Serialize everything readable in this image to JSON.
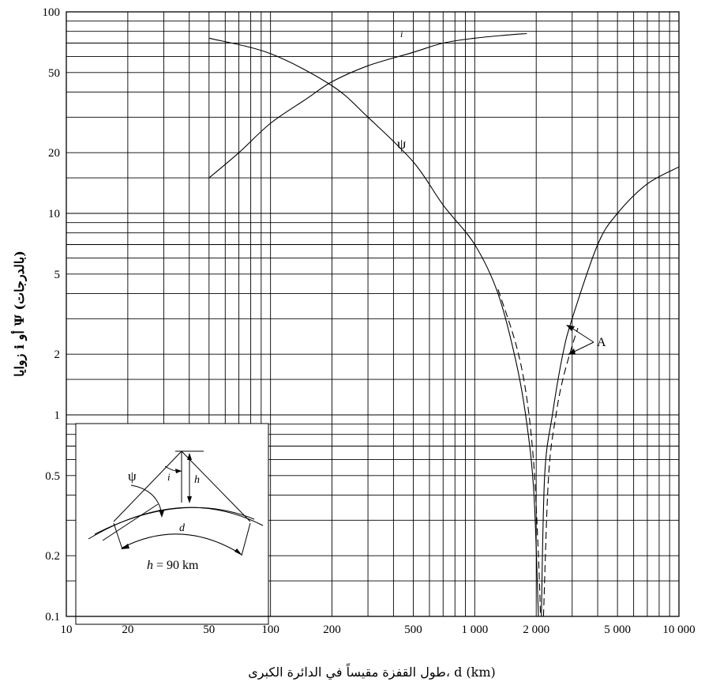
{
  "chart_data": {
    "type": "line",
    "xscale": "log",
    "yscale": "log",
    "xlim": [
      10,
      10000
    ],
    "ylim": [
      0.1,
      100
    ],
    "grid": true,
    "x_tick_labels": [
      {
        "v": 10,
        "label": "10"
      },
      {
        "v": 20,
        "label": "20"
      },
      {
        "v": 50,
        "label": "50"
      },
      {
        "v": 100,
        "label": "100"
      },
      {
        "v": 200,
        "label": "200"
      },
      {
        "v": 500,
        "label": "500"
      },
      {
        "v": 1000,
        "label": "1 000"
      },
      {
        "v": 2000,
        "label": "2 000"
      },
      {
        "v": 5000,
        "label": "5 000"
      },
      {
        "v": 10000,
        "label": "10 000"
      }
    ],
    "y_tick_labels": [
      {
        "v": 0.1,
        "label": "0.1"
      },
      {
        "v": 0.2,
        "label": "0.2"
      },
      {
        "v": 0.5,
        "label": "0.5"
      },
      {
        "v": 1,
        "label": "1"
      },
      {
        "v": 2,
        "label": "2"
      },
      {
        "v": 5,
        "label": "5"
      },
      {
        "v": 10,
        "label": "10"
      },
      {
        "v": 20,
        "label": "20"
      },
      {
        "v": 50,
        "label": "50"
      },
      {
        "v": 100,
        "label": "100"
      }
    ],
    "x_gridlines": [
      20,
      30,
      40,
      50,
      60,
      70,
      80,
      90,
      100,
      200,
      300,
      400,
      500,
      600,
      700,
      800,
      900,
      1000,
      2000,
      3000,
      4000,
      5000,
      6000,
      7000,
      8000,
      9000
    ],
    "y_gridlines": [
      0.15,
      0.2,
      0.3,
      0.4,
      0.5,
      0.6,
      0.7,
      0.8,
      0.9,
      1,
      1.5,
      2,
      3,
      4,
      5,
      6,
      7,
      8,
      9,
      10,
      15,
      20,
      30,
      40,
      50,
      60,
      70,
      80,
      90
    ],
    "xlabel": "طول القفزة مقيساً في الدائرة الكبرى، d (km)",
    "ylabel": "زوايا i أو Ψ (بالدرجات)",
    "series": [
      {
        "name": "i",
        "style": "solid",
        "points": [
          [
            50,
            15
          ],
          [
            70,
            20
          ],
          [
            100,
            28
          ],
          [
            150,
            37
          ],
          [
            200,
            45
          ],
          [
            300,
            54
          ],
          [
            500,
            63
          ],
          [
            700,
            70
          ],
          [
            1000,
            74
          ],
          [
            1500,
            77
          ],
          [
            1800,
            78
          ]
        ]
      },
      {
        "name": "ψ",
        "style": "solid",
        "points": [
          [
            50,
            74
          ],
          [
            100,
            62
          ],
          [
            200,
            43
          ],
          [
            300,
            30
          ],
          [
            500,
            18
          ],
          [
            700,
            11
          ],
          [
            1000,
            7
          ],
          [
            1300,
            4
          ],
          [
            1600,
            1.8
          ],
          [
            1800,
            0.9
          ],
          [
            1950,
            0.4
          ],
          [
            2050,
            0.1
          ]
        ]
      },
      {
        "name": "",
        "style": "solid",
        "points": [
          [
            2120,
            0.1
          ],
          [
            2200,
            0.5
          ],
          [
            2400,
            1
          ],
          [
            2700,
            2
          ],
          [
            3000,
            3
          ],
          [
            4000,
            7
          ],
          [
            5000,
            10
          ],
          [
            7000,
            14
          ],
          [
            10000,
            17
          ]
        ]
      },
      {
        "name": "",
        "style": "dashed",
        "points": [
          [
            1300,
            4.2
          ],
          [
            1600,
            2.2
          ],
          [
            1800,
            1.2
          ],
          [
            1950,
            0.55
          ],
          [
            2050,
            0.2
          ],
          [
            2100,
            0.1
          ]
        ]
      },
      {
        "name": "",
        "style": "dashed",
        "points": [
          [
            2170,
            0.1
          ],
          [
            2300,
            0.5
          ],
          [
            2500,
            1
          ],
          [
            2700,
            1.5
          ],
          [
            3000,
            2.2
          ],
          [
            3200,
            2.7
          ]
        ]
      }
    ],
    "annotations": {
      "i": "i",
      "psi": "ψ",
      "a": "A"
    },
    "inset": {
      "psi_label": "ψ",
      "i_label": "i",
      "h_label": "h",
      "d_label": "d",
      "caption_h": "h",
      "caption_value": " = 90 km"
    }
  }
}
